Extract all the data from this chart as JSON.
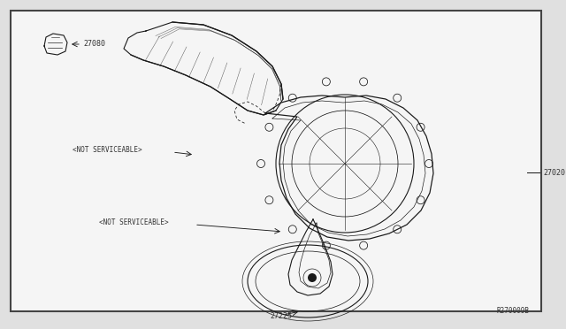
{
  "bg_color": "#e0e0e0",
  "diagram_bg": "#f5f5f5",
  "border_color": "#444444",
  "line_color": "#1a1a1a",
  "text_color": "#333333",
  "label_27080": "27080",
  "label_27020": "27020",
  "label_27225": "27225",
  "label_ref": "R270009B",
  "not_svc_upper": "<NOT SERVICEABLE>",
  "not_svc_lower": "<NOT SERVICEABLE>"
}
